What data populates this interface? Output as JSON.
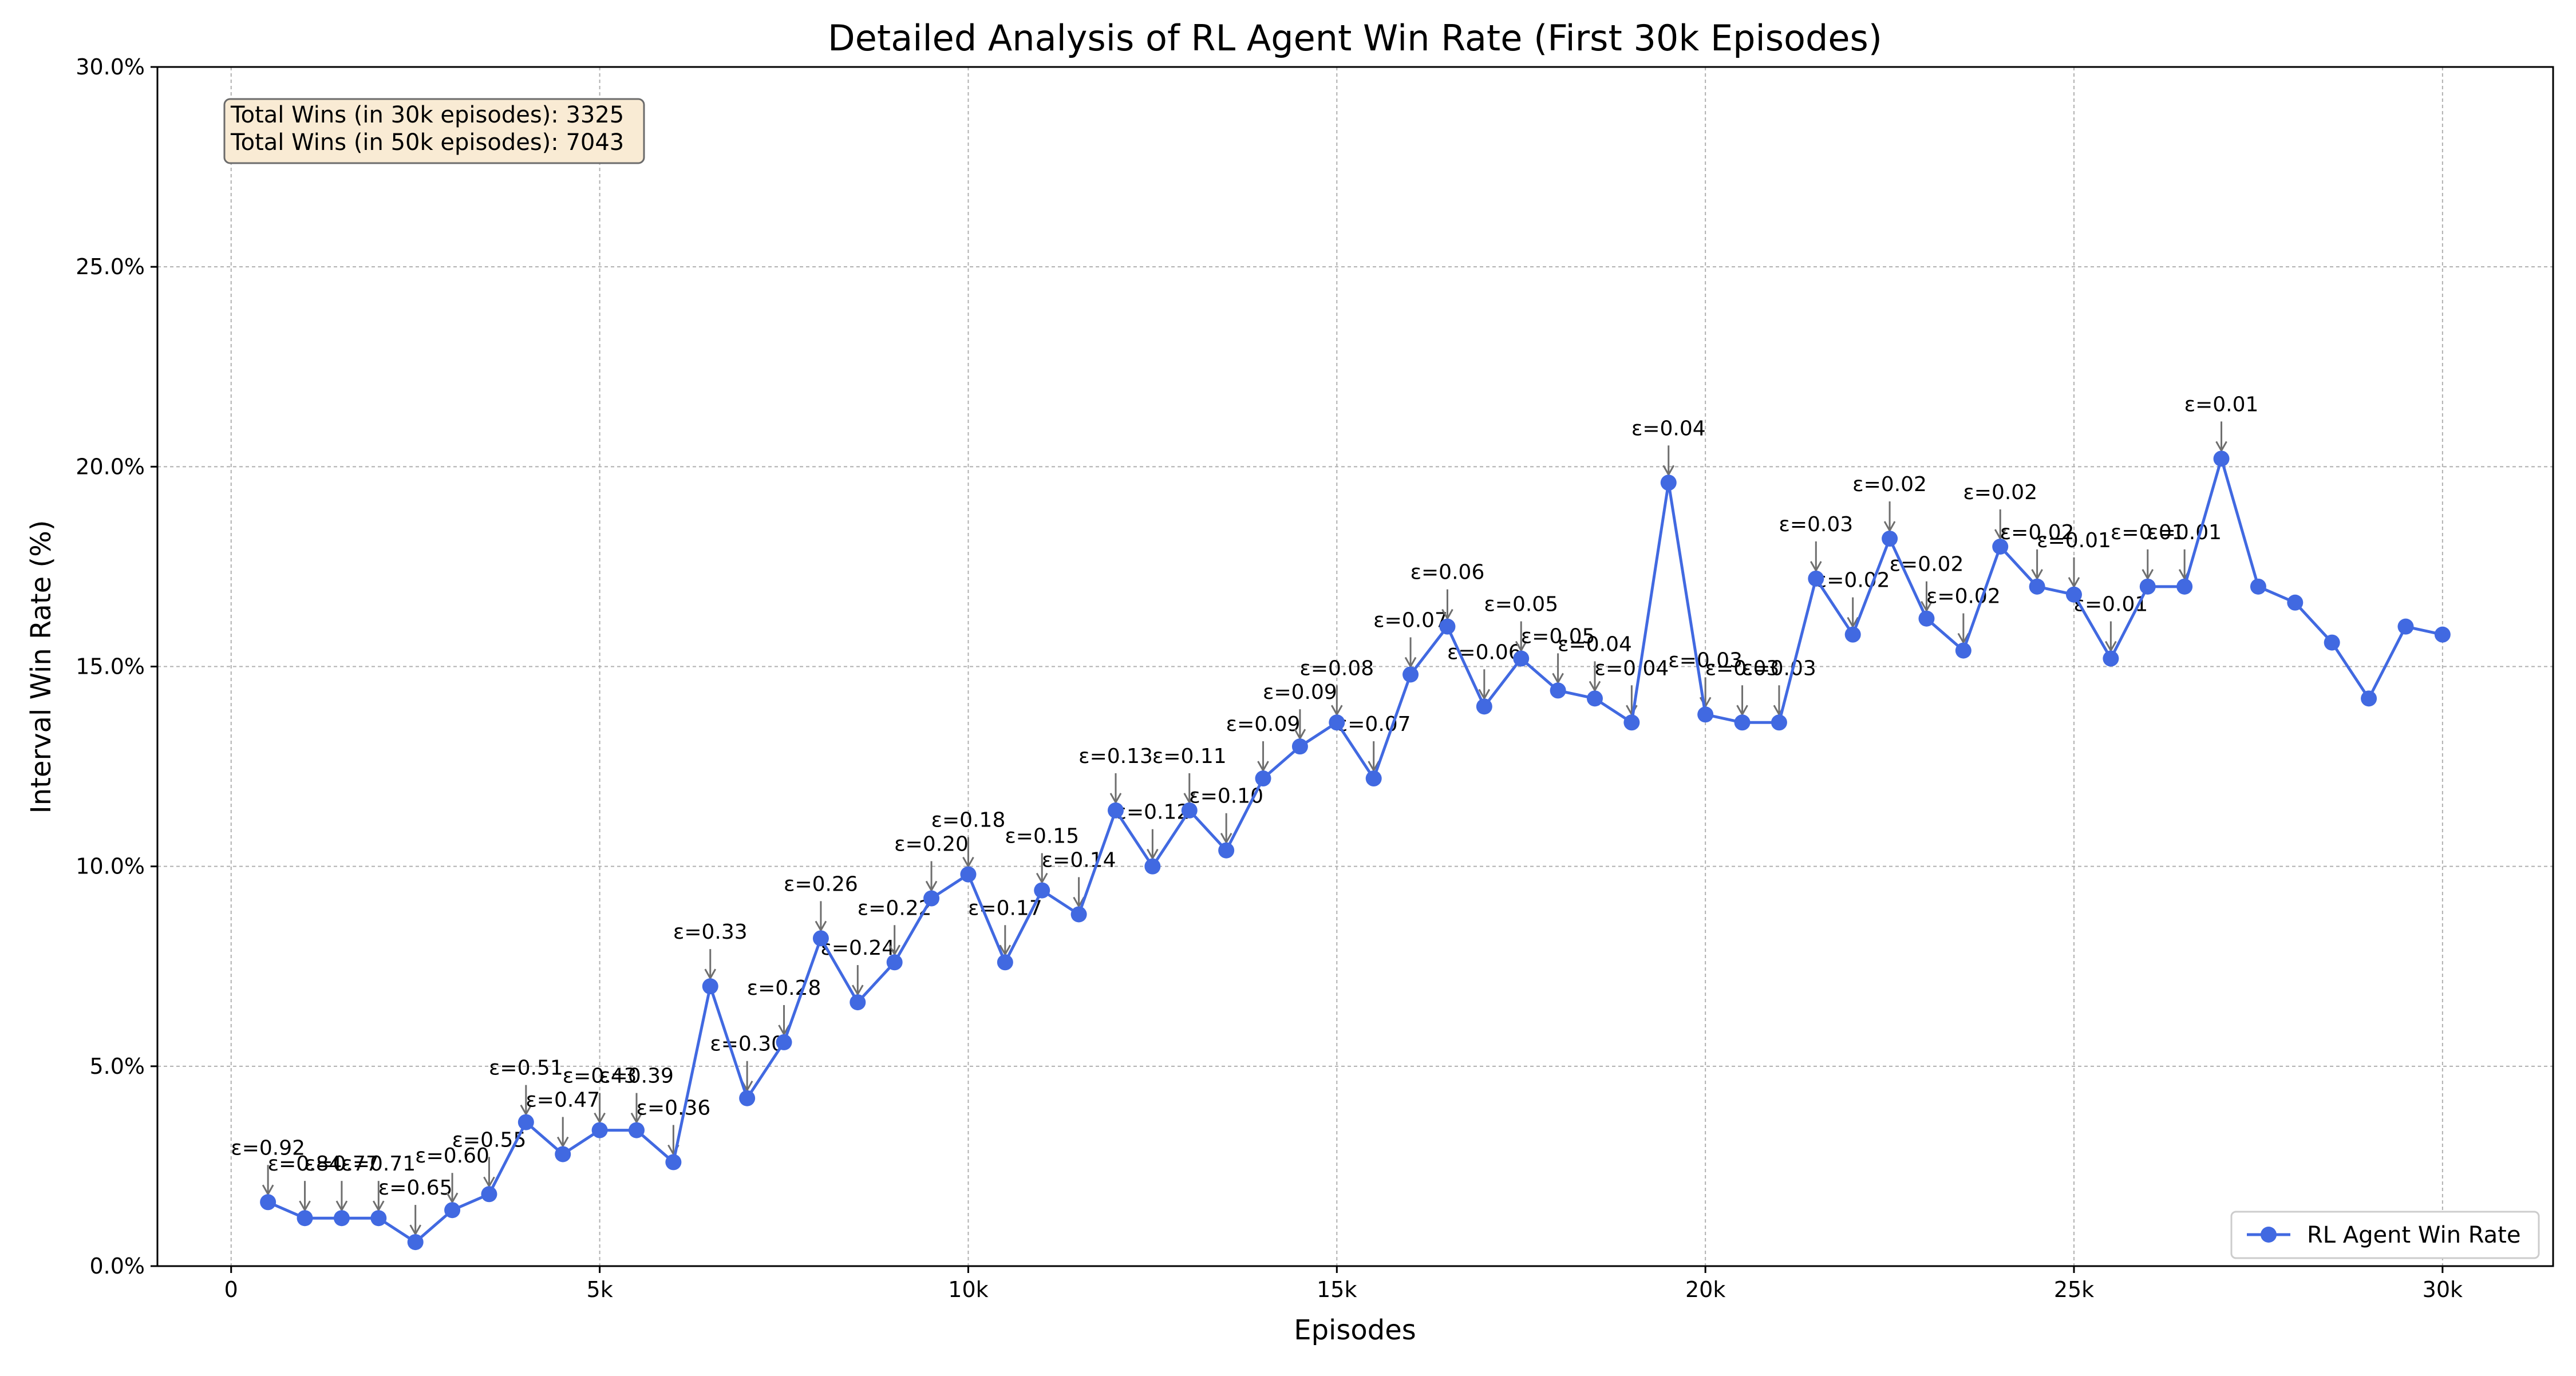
{
  "chart_data": {
    "type": "line",
    "title": "Detailed Analysis of RL Agent Win Rate (First 30k Episodes)",
    "xlabel": "Episodes",
    "ylabel": "Interval Win Rate (%)",
    "xlim": [
      -1000,
      31500
    ],
    "ylim": [
      0,
      30
    ],
    "x_ticks": [
      {
        "value": 0,
        "label": "0"
      },
      {
        "value": 5000,
        "label": "5k"
      },
      {
        "value": 10000,
        "label": "10k"
      },
      {
        "value": 15000,
        "label": "15k"
      },
      {
        "value": 20000,
        "label": "20k"
      },
      {
        "value": 25000,
        "label": "25k"
      },
      {
        "value": 30000,
        "label": "30k"
      }
    ],
    "y_ticks": [
      {
        "value": 0,
        "label": "0.0%"
      },
      {
        "value": 5,
        "label": "5.0%"
      },
      {
        "value": 10,
        "label": "10.0%"
      },
      {
        "value": 15,
        "label": "15.0%"
      },
      {
        "value": 20,
        "label": "20.0%"
      },
      {
        "value": 25,
        "label": "25.0%"
      },
      {
        "value": 30,
        "label": "30.0%"
      }
    ],
    "grid": true,
    "legend_position": "lower-right",
    "series": [
      {
        "name": "RL Agent Win Rate",
        "color": "#4169e1",
        "x": [
          500,
          1000,
          1500,
          2000,
          2500,
          3000,
          3500,
          4000,
          4500,
          5000,
          5500,
          6000,
          6500,
          7000,
          7500,
          8000,
          8500,
          9000,
          9500,
          10000,
          10500,
          11000,
          11500,
          12000,
          12500,
          13000,
          13500,
          14000,
          14500,
          15000,
          15500,
          16000,
          16500,
          17000,
          17500,
          18000,
          18500,
          19000,
          19500,
          20000,
          20500,
          21000,
          21500,
          22000,
          22500,
          23000,
          23500,
          24000,
          24500,
          25000,
          25500,
          26000,
          26500,
          27000,
          27500,
          28000,
          28500,
          29000,
          29500,
          30000
        ],
        "values": [
          1.6,
          1.2,
          1.2,
          1.2,
          0.6,
          1.4,
          1.8,
          3.6,
          2.8,
          3.4,
          3.4,
          2.6,
          7.0,
          4.2,
          5.6,
          8.2,
          6.6,
          7.6,
          9.2,
          9.8,
          7.6,
          9.4,
          8.8,
          11.4,
          10.0,
          11.4,
          10.4,
          12.2,
          13.0,
          13.6,
          12.2,
          14.8,
          16.0,
          14.0,
          15.2,
          14.4,
          14.2,
          13.6,
          19.6,
          13.8,
          13.6,
          13.6,
          17.2,
          15.8,
          18.2,
          16.2,
          15.4,
          18.0,
          17.0,
          16.8,
          15.2,
          17.0,
          17.0,
          20.2,
          17.0,
          16.6,
          15.6,
          14.2,
          16.0,
          15.8
        ]
      }
    ],
    "annotations": [
      "ε=0.92",
      "ε=0.84",
      "ε=0.77",
      "ε=0.71",
      "ε=0.65",
      "ε=0.60",
      "ε=0.55",
      "ε=0.51",
      "ε=0.47",
      "ε=0.43",
      "ε=0.39",
      "ε=0.36",
      "ε=0.33",
      "ε=0.30",
      "ε=0.28",
      "ε=0.26",
      "ε=0.24",
      "ε=0.22",
      "ε=0.20",
      "ε=0.18",
      "ε=0.17",
      "ε=0.15",
      "ε=0.14",
      "ε=0.13",
      "ε=0.12",
      "ε=0.11",
      "ε=0.10",
      "ε=0.09",
      "ε=0.09",
      "ε=0.08",
      "ε=0.07",
      "ε=0.07",
      "ε=0.06",
      "ε=0.06",
      "ε=0.05",
      "ε=0.05",
      "ε=0.04",
      "ε=0.04",
      "ε=0.04",
      "ε=0.03",
      "ε=0.03",
      "ε=0.03",
      "ε=0.03",
      "ε=0.02",
      "ε=0.02",
      "ε=0.02",
      "ε=0.02",
      "ε=0.02",
      "ε=0.02",
      "ε=0.01",
      "ε=0.01",
      "ε=0.01",
      "ε=0.01",
      "ε=0.01"
    ],
    "info_box": [
      "Total Wins (in 30k episodes): 3325",
      "Total Wins (in 50k episodes): 7043"
    ]
  }
}
